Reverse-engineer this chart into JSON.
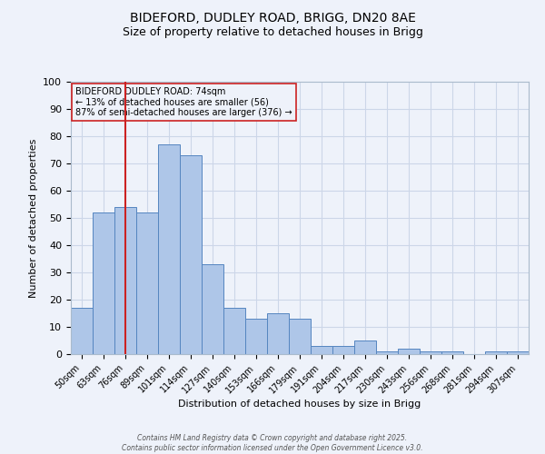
{
  "title_line1": "BIDEFORD, DUDLEY ROAD, BRIGG, DN20 8AE",
  "title_line2": "Size of property relative to detached houses in Brigg",
  "categories": [
    "50sqm",
    "63sqm",
    "76sqm",
    "89sqm",
    "101sqm",
    "114sqm",
    "127sqm",
    "140sqm",
    "153sqm",
    "166sqm",
    "179sqm",
    "191sqm",
    "204sqm",
    "217sqm",
    "230sqm",
    "243sqm",
    "256sqm",
    "268sqm",
    "281sqm",
    "294sqm",
    "307sqm"
  ],
  "values": [
    17,
    52,
    54,
    52,
    77,
    73,
    33,
    17,
    13,
    15,
    13,
    3,
    3,
    5,
    1,
    2,
    1,
    1,
    0,
    1,
    1
  ],
  "bar_color": "#aec6e8",
  "bar_edge_color": "#5585c0",
  "grid_color": "#ccd6e8",
  "background_color": "#eef2fa",
  "vline_x_index": 2,
  "vline_color": "#cc2222",
  "ylabel": "Number of detached properties",
  "xlabel": "Distribution of detached houses by size in Brigg",
  "ylim": [
    0,
    100
  ],
  "yticks": [
    0,
    10,
    20,
    30,
    40,
    50,
    60,
    70,
    80,
    90,
    100
  ],
  "annotation_title": "BIDEFORD DUDLEY ROAD: 74sqm",
  "annotation_line1": "← 13% of detached houses are smaller (56)",
  "annotation_line2": "87% of semi-detached houses are larger (376) →",
  "annotation_box_color": "#cc2222",
  "footer_line1": "Contains HM Land Registry data © Crown copyright and database right 2025.",
  "footer_line2": "Contains public sector information licensed under the Open Government Licence v3.0."
}
